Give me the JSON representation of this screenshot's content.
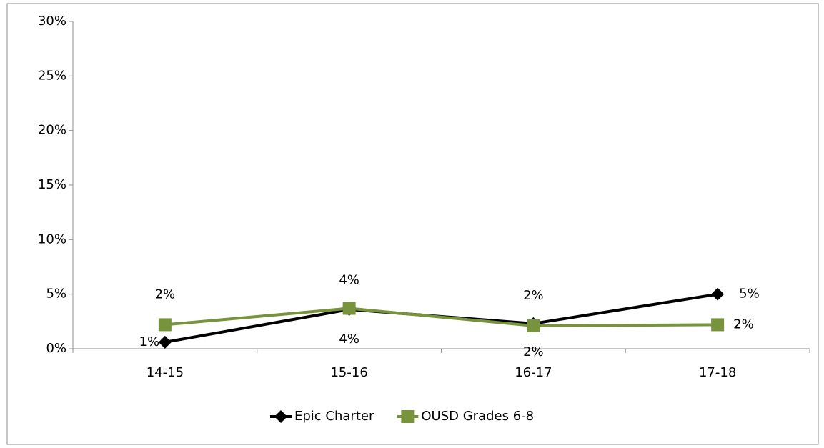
{
  "chart_data": {
    "type": "line",
    "categories": [
      "14-15",
      "15-16",
      "16-17",
      "17-18"
    ],
    "series": [
      {
        "name": "Epic Charter",
        "color": "#000000",
        "marker": "diamond",
        "values": [
          0.6,
          3.6,
          2.3,
          5.0
        ],
        "value_labels": [
          "1%",
          "4%",
          "2%",
          "5%"
        ]
      },
      {
        "name": "OUSD Grades 6-8",
        "color": "#77933c",
        "marker": "square",
        "values": [
          2.2,
          3.7,
          2.1,
          2.2
        ],
        "value_labels": [
          "2%",
          "4%",
          "2%",
          "2%"
        ]
      }
    ],
    "ylim": [
      0,
      30
    ],
    "yticks": [
      {
        "value": 0,
        "label": "0%"
      },
      {
        "value": 5,
        "label": "5%"
      },
      {
        "value": 10,
        "label": "10%"
      },
      {
        "value": 15,
        "label": "15%"
      },
      {
        "value": 20,
        "label": "20%"
      },
      {
        "value": 25,
        "label": "25%"
      },
      {
        "value": 30,
        "label": "30%"
      }
    ],
    "grid": false,
    "legend": "bottom"
  }
}
